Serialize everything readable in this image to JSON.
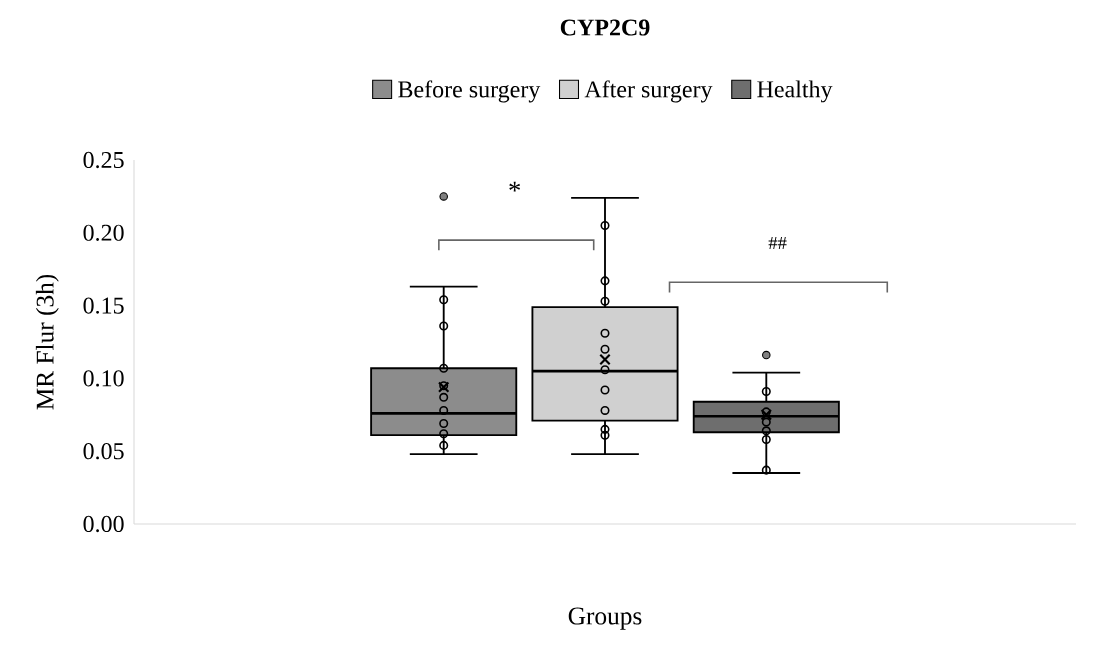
{
  "chart_data": {
    "type": "box",
    "title": "CYP2C9",
    "xlabel": "Groups",
    "ylabel": "MR Flur (3h)",
    "categories": [
      null
    ],
    "legend": "top",
    "tick_labels": "y",
    "grid": false,
    "ylim": [
      0,
      0.25
    ],
    "yticks": [
      {
        "value": 0,
        "label": "0.00"
      },
      {
        "value": 0.05,
        "label": "0.05"
      },
      {
        "value": 0.1,
        "label": "0.10"
      },
      {
        "value": 0.15,
        "label": "0.15"
      },
      {
        "value": 0.2,
        "label": "0.20"
      },
      {
        "value": 0.25,
        "label": "0.25"
      }
    ],
    "annotations": [
      "*",
      "##"
    ],
    "series": [
      {
        "name": "Before surgery",
        "color": "#8c8c8c",
        "boxes": [
          {
            "low": 0.048,
            "q1": 0.061,
            "median": 0.076,
            "q3": 0.107,
            "high": 0.163,
            "mean": 0.094,
            "outliers": [
              0.225,
              0.154,
              0.136,
              0.107,
              0.095,
              0.087,
              0.078,
              0.069,
              0.062,
              0.054
            ]
          }
        ]
      },
      {
        "name": "After surgery",
        "color": "#d0d0d0",
        "boxes": [
          {
            "low": 0.048,
            "q1": 0.071,
            "median": 0.105,
            "q3": 0.149,
            "high": 0.224,
            "mean": 0.113,
            "outliers": [
              0.205,
              0.167,
              0.153,
              0.131,
              0.12,
              0.106,
              0.092,
              0.078,
              0.065,
              0.061
            ]
          }
        ]
      },
      {
        "name": "Healthy",
        "color": "#6e6e6e",
        "boxes": [
          {
            "low": 0.035,
            "q1": 0.063,
            "median": 0.074,
            "q3": 0.084,
            "high": 0.104,
            "mean": 0.075,
            "outliers": [
              0.116,
              0.091,
              0.077,
              0.07,
              0.064,
              0.058,
              0.037
            ]
          }
        ]
      }
    ]
  }
}
